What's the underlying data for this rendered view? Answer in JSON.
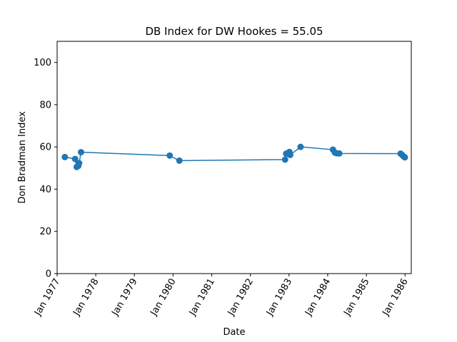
{
  "chart_data": {
    "type": "line",
    "title": "DB Index for DW Hookes = 55.05",
    "xlabel": "Date",
    "ylabel": "Don Bradman Index",
    "ylim": [
      0,
      110
    ],
    "xlim": [
      "1977-01-01",
      "1986-03-01"
    ],
    "yticks": [
      0,
      20,
      40,
      60,
      80,
      100
    ],
    "xticks": [
      {
        "date": "1977-01-01",
        "label": "Jan 1977"
      },
      {
        "date": "1978-01-01",
        "label": "Jan 1978"
      },
      {
        "date": "1979-01-01",
        "label": "Jan 1979"
      },
      {
        "date": "1980-01-01",
        "label": "Jan 1980"
      },
      {
        "date": "1981-01-01",
        "label": "Jan 1981"
      },
      {
        "date": "1982-01-01",
        "label": "Jan 1982"
      },
      {
        "date": "1983-01-01",
        "label": "Jan 1983"
      },
      {
        "date": "1984-01-01",
        "label": "Jan 1984"
      },
      {
        "date": "1985-01-01",
        "label": "Jan 1985"
      },
      {
        "date": "1986-01-01",
        "label": "Jan 1986"
      }
    ],
    "grid": false,
    "series": [
      {
        "color": "#1f77b4",
        "points": [
          {
            "x": "1977-03-15",
            "y": 55.2
          },
          {
            "x": "1977-06-20",
            "y": 54.3
          },
          {
            "x": "1977-07-05",
            "y": 50.5
          },
          {
            "x": "1977-07-20",
            "y": 51.0
          },
          {
            "x": "1977-07-28",
            "y": 52.3
          },
          {
            "x": "1977-08-15",
            "y": 57.5
          },
          {
            "x": "1979-12-01",
            "y": 55.9
          },
          {
            "x": "1980-03-01",
            "y": 53.5
          },
          {
            "x": "1982-11-25",
            "y": 54.0
          },
          {
            "x": "1982-12-05",
            "y": 56.8
          },
          {
            "x": "1982-12-25",
            "y": 57.2
          },
          {
            "x": "1983-01-05",
            "y": 57.6
          },
          {
            "x": "1983-01-12",
            "y": 56.2
          },
          {
            "x": "1983-04-20",
            "y": 60.0
          },
          {
            "x": "1984-02-20",
            "y": 58.7
          },
          {
            "x": "1984-03-10",
            "y": 57.3
          },
          {
            "x": "1984-03-25",
            "y": 57.0
          },
          {
            "x": "1984-04-20",
            "y": 56.9
          },
          {
            "x": "1985-11-20",
            "y": 56.8
          },
          {
            "x": "1985-12-05",
            "y": 56.2
          },
          {
            "x": "1985-12-20",
            "y": 55.4
          },
          {
            "x": "1985-12-30",
            "y": 55.05
          }
        ]
      }
    ]
  }
}
